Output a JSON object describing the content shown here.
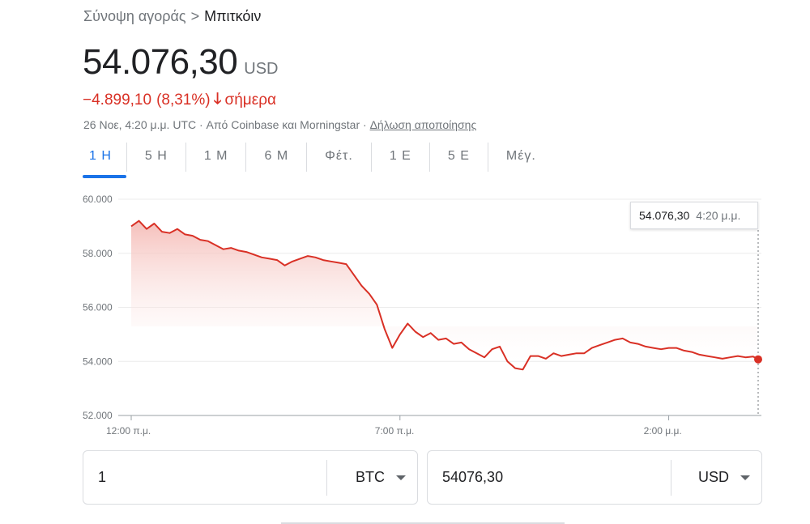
{
  "breadcrumb": {
    "parent": "Σύνοψη αγοράς",
    "separator": ">",
    "current": "Μπιτκόιν"
  },
  "price": {
    "value": "54.076,30",
    "currency": "USD"
  },
  "change": {
    "amount": "−4.899,10",
    "percent": "(8,31%)",
    "label": "σήμερα",
    "direction": "down",
    "color": "#d93025"
  },
  "meta": {
    "timestamp": "26 Νοε, 4:20 μ.μ. UTC",
    "source": "Από Coinbase και Morningstar",
    "disclaimer": "Δήλωση αποποίησης",
    "dot": "·"
  },
  "tabs": [
    {
      "label": "1 Η",
      "active": true
    },
    {
      "label": "5 Η",
      "active": false
    },
    {
      "label": "1 Μ",
      "active": false
    },
    {
      "label": "6 Μ",
      "active": false
    },
    {
      "label": "Φέτ.",
      "active": false
    },
    {
      "label": "1 Ε",
      "active": false
    },
    {
      "label": "5 Ε",
      "active": false
    },
    {
      "label": "Μέγ.",
      "active": false
    }
  ],
  "tooltip": {
    "value": "54.076,30",
    "time": "4:20 μ.μ."
  },
  "chart_data": {
    "type": "line",
    "y_ticks": [
      "60.000",
      "58.000",
      "56.000",
      "54.000",
      "52.000"
    ],
    "ylim": [
      52000,
      60000
    ],
    "x_ticks": [
      "12:00 π.μ.",
      "7:00 π.μ.",
      "2:00 μ.μ."
    ],
    "x_tick_hours": [
      0,
      7,
      14
    ],
    "xlim_hours": [
      0,
      16.33
    ],
    "line_color": "#d93025",
    "series": [
      {
        "x_hours": [
          0.0,
          0.2,
          0.4,
          0.6,
          0.8,
          1.0,
          1.2,
          1.4,
          1.6,
          1.8,
          2.0,
          2.2,
          2.4,
          2.6,
          2.8,
          3.0,
          3.2,
          3.4,
          3.6,
          3.8,
          4.0,
          4.2,
          4.4,
          4.6,
          4.8,
          5.0,
          5.2,
          5.4,
          5.6,
          5.8,
          6.0,
          6.2,
          6.4,
          6.6,
          6.8,
          7.0,
          7.2,
          7.4,
          7.6,
          7.8,
          8.0,
          8.2,
          8.4,
          8.6,
          8.8,
          9.0,
          9.2,
          9.4,
          9.6,
          9.8,
          10.0,
          10.2,
          10.4,
          10.6,
          10.8,
          11.0,
          11.2,
          11.4,
          11.6,
          11.8,
          12.0,
          12.2,
          12.4,
          12.6,
          12.8,
          13.0,
          13.2,
          13.4,
          13.6,
          13.8,
          14.0,
          14.2,
          14.4,
          14.6,
          14.8,
          15.0,
          15.2,
          15.4,
          15.6,
          15.8,
          16.0,
          16.2,
          16.33
        ],
        "y": [
          59000,
          59200,
          58900,
          59100,
          58800,
          58750,
          58900,
          58700,
          58650,
          58500,
          58450,
          58300,
          58150,
          58200,
          58100,
          58050,
          57950,
          57850,
          57800,
          57750,
          57550,
          57700,
          57800,
          57900,
          57850,
          57750,
          57700,
          57650,
          57600,
          57200,
          56800,
          56500,
          56100,
          55200,
          54500,
          55000,
          55400,
          55100,
          54900,
          55050,
          54800,
          54850,
          54650,
          54700,
          54450,
          54300,
          54150,
          54450,
          54550,
          54000,
          53750,
          53700,
          54200,
          54200,
          54100,
          54300,
          54200,
          54250,
          54300,
          54300,
          54500,
          54600,
          54700,
          54800,
          54850,
          54700,
          54650,
          54550,
          54500,
          54450,
          54500,
          54500,
          54400,
          54350,
          54250,
          54200,
          54150,
          54100,
          54150,
          54200,
          54150,
          54180,
          54076
        ]
      }
    ]
  },
  "converter": {
    "from": {
      "value": "1",
      "unit": "BTC"
    },
    "to": {
      "value": "54076,30",
      "unit": "USD"
    }
  }
}
